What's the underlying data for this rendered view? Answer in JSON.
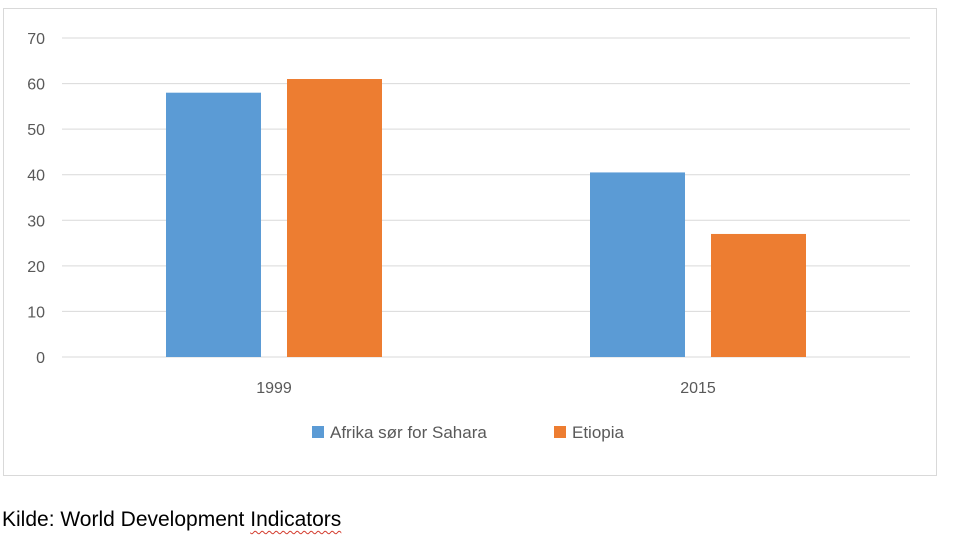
{
  "chart_data": {
    "type": "bar",
    "categories": [
      "1999",
      "2015"
    ],
    "series": [
      {
        "name": "Afrika sør for Sahara",
        "values": [
          58,
          40.5
        ]
      },
      {
        "name": "Etiopia",
        "values": [
          61,
          27
        ]
      }
    ],
    "colors": [
      "#5b9bd5",
      "#ed7d31"
    ],
    "ylim": [
      0,
      70
    ],
    "yticks": [
      "0",
      "10",
      "20",
      "30",
      "40",
      "50",
      "60",
      "70"
    ],
    "grid": true,
    "legend_position": "bottom",
    "title": "",
    "xlabel": "",
    "ylabel": ""
  },
  "source": {
    "prefix": "Kilde: World Development ",
    "highlighted": "Indicators"
  }
}
